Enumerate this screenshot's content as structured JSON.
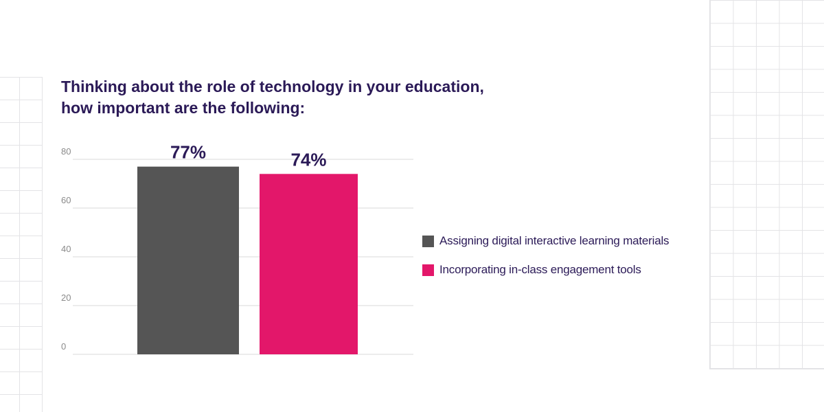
{
  "title_lines": [
    "Thinking about the role of technology in your education,",
    "how important are the following:"
  ],
  "colors": {
    "title": "#2b1a57",
    "axis_text": "#8a8a8a",
    "gridline": "#d9d9d9",
    "series_1": "#555555",
    "series_2": "#e3176a"
  },
  "chart_data": {
    "type": "bar",
    "title": "Thinking about the role of technology in your education, how important are the following:",
    "ylim": [
      0,
      80
    ],
    "yticks": [
      0,
      20,
      40,
      60,
      80
    ],
    "grid": true,
    "legend_position": "right",
    "series": [
      {
        "name": "Assigning digital interactive learning materials",
        "value": 77,
        "label": "77%",
        "color": "#555555"
      },
      {
        "name": "Incorporating in-class engagement tools",
        "value": 74,
        "label": "74%",
        "color": "#e3176a"
      }
    ]
  },
  "legend": [
    {
      "label": "Assigning digital interactive learning materials",
      "color": "#555555"
    },
    {
      "label": "Incorporating in-class engagement tools",
      "color": "#e3176a"
    }
  ]
}
